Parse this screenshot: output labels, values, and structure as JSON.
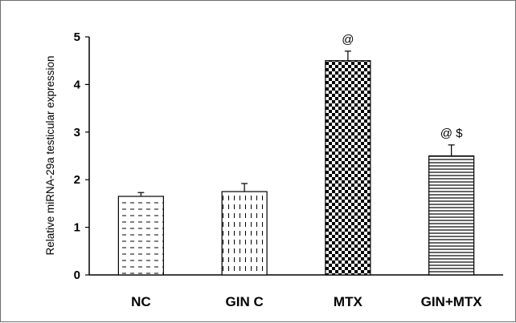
{
  "chart_data": {
    "type": "bar",
    "title": "",
    "xlabel": "",
    "ylabel": "Relative miRNA-29a testicular expression",
    "ylim": [
      0,
      5
    ],
    "yticks": [
      "0",
      "1",
      "2",
      "3",
      "4",
      "5"
    ],
    "categories": [
      "NC",
      "GIN C",
      "MTX",
      "GIN+MTX"
    ],
    "values": [
      1.65,
      1.75,
      4.5,
      2.5
    ],
    "errors": [
      0.08,
      0.17,
      0.2,
      0.23
    ],
    "annotations": [
      "",
      "",
      "@",
      "@ $"
    ],
    "patterns": [
      "horizontal-dashes",
      "vertical-dashes",
      "checkerboard",
      "horizontal-lines"
    ],
    "grid": false,
    "legend": "none",
    "colors": {
      "ink": "#000000",
      "background": "#ffffff"
    }
  }
}
